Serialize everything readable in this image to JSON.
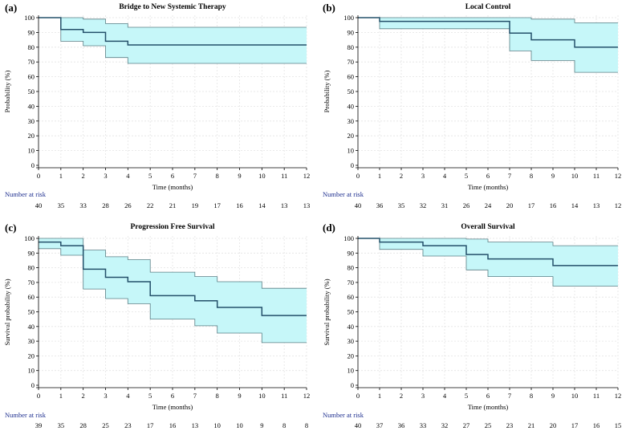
{
  "chart_data": [
    {
      "type": "line",
      "step": true,
      "panel_label": "(a)",
      "title": "Bridge to New Systemic Therapy",
      "xlabel": "Time (months)",
      "ylabel": "Probability (%)",
      "xlim": [
        0,
        12
      ],
      "ylim": [
        0,
        100
      ],
      "x_ticks": [
        0,
        1,
        2,
        3,
        4,
        5,
        6,
        7,
        8,
        9,
        10,
        11,
        12
      ],
      "y_ticks": [
        0,
        10,
        20,
        30,
        40,
        50,
        60,
        70,
        80,
        90,
        100
      ],
      "grid": true,
      "survival": {
        "x": [
          0,
          1,
          2,
          3,
          4,
          12
        ],
        "y": [
          100,
          92,
          90,
          84,
          81.5,
          81.5
        ]
      },
      "upper_ci": {
        "x": [
          0,
          1,
          2,
          3,
          4,
          12
        ],
        "y": [
          100,
          100,
          99,
          96,
          93.5,
          93.5
        ]
      },
      "lower_ci": {
        "x": [
          0,
          1,
          2,
          3,
          4,
          12
        ],
        "y": [
          100,
          84,
          81,
          73,
          69,
          69
        ]
      },
      "risk_label": "Number at risk",
      "number_at_risk": [
        40,
        35,
        33,
        28,
        26,
        22,
        21,
        19,
        17,
        16,
        14,
        13,
        13
      ]
    },
    {
      "type": "line",
      "step": true,
      "panel_label": "(b)",
      "title": "Local Control",
      "xlabel": "Time (months)",
      "ylabel": "Probability (%)",
      "xlim": [
        0,
        12
      ],
      "ylim": [
        0,
        100
      ],
      "x_ticks": [
        0,
        1,
        2,
        3,
        4,
        5,
        6,
        7,
        8,
        9,
        10,
        11,
        12
      ],
      "y_ticks": [
        0,
        10,
        20,
        30,
        40,
        50,
        60,
        70,
        80,
        90,
        100
      ],
      "grid": true,
      "survival": {
        "x": [
          0,
          1,
          7,
          8,
          10,
          12
        ],
        "y": [
          100,
          97.5,
          89.5,
          85,
          80,
          80
        ]
      },
      "upper_ci": {
        "x": [
          0,
          1,
          7,
          8,
          10,
          12
        ],
        "y": [
          100,
          100,
          100,
          99,
          96.5,
          96.5
        ]
      },
      "lower_ci": {
        "x": [
          0,
          1,
          7,
          8,
          10,
          12
        ],
        "y": [
          100,
          92.5,
          77.5,
          71,
          63,
          63
        ]
      },
      "risk_label": "Number at risk",
      "number_at_risk": [
        40,
        36,
        35,
        32,
        31,
        26,
        24,
        20,
        17,
        16,
        14,
        13,
        12
      ]
    },
    {
      "type": "line",
      "step": true,
      "panel_label": "(c)",
      "title": "Progression Free Survival",
      "xlabel": "Time (months)",
      "ylabel": "Survival probability (%)",
      "xlim": [
        0,
        12
      ],
      "ylim": [
        0,
        100
      ],
      "x_ticks": [
        0,
        1,
        2,
        3,
        4,
        5,
        6,
        7,
        8,
        9,
        10,
        11,
        12
      ],
      "y_ticks": [
        0,
        10,
        20,
        30,
        40,
        50,
        60,
        70,
        80,
        90,
        100
      ],
      "grid": true,
      "survival": {
        "x": [
          0,
          1,
          2,
          3,
          4,
          5,
          7,
          8,
          10,
          12
        ],
        "y": [
          97.5,
          95,
          79,
          73.5,
          70.5,
          61,
          57.5,
          53,
          47.5,
          47.5
        ]
      },
      "upper_ci": {
        "x": [
          0,
          1,
          2,
          3,
          4,
          5,
          7,
          8,
          10,
          12
        ],
        "y": [
          100,
          100,
          92,
          87.5,
          85.5,
          77,
          74,
          70.5,
          66,
          66
        ]
      },
      "lower_ci": {
        "x": [
          0,
          1,
          2,
          3,
          4,
          5,
          7,
          8,
          10,
          12
        ],
        "y": [
          93,
          88.5,
          65.5,
          59,
          55.5,
          45,
          40.5,
          35.5,
          29,
          29
        ]
      },
      "risk_label": "Number at risk",
      "number_at_risk": [
        39,
        35,
        28,
        25,
        23,
        17,
        16,
        13,
        10,
        10,
        9,
        8,
        8
      ]
    },
    {
      "type": "line",
      "step": true,
      "panel_label": "(d)",
      "title": "Overall Survival",
      "xlabel": "Time (months)",
      "ylabel": "Survival probability (%)",
      "xlim": [
        0,
        12
      ],
      "ylim": [
        0,
        100
      ],
      "x_ticks": [
        0,
        1,
        2,
        3,
        4,
        5,
        6,
        7,
        8,
        9,
        10,
        11,
        12
      ],
      "y_ticks": [
        0,
        10,
        20,
        30,
        40,
        50,
        60,
        70,
        80,
        90,
        100
      ],
      "grid": true,
      "survival": {
        "x": [
          0,
          1,
          3,
          5,
          6,
          9,
          12
        ],
        "y": [
          100,
          97.5,
          95,
          89,
          86,
          81.5,
          81.5
        ]
      },
      "upper_ci": {
        "x": [
          0,
          1,
          3,
          5,
          6,
          9,
          12
        ],
        "y": [
          100,
          100,
          100,
          99.5,
          97.5,
          95,
          95
        ]
      },
      "lower_ci": {
        "x": [
          0,
          1,
          3,
          5,
          6,
          9,
          12
        ],
        "y": [
          100,
          92.5,
          88,
          78.5,
          74,
          67.5,
          67.5
        ]
      },
      "risk_label": "Number at risk",
      "number_at_risk": [
        40,
        37,
        36,
        33,
        32,
        27,
        25,
        23,
        21,
        20,
        17,
        16,
        15
      ]
    }
  ]
}
